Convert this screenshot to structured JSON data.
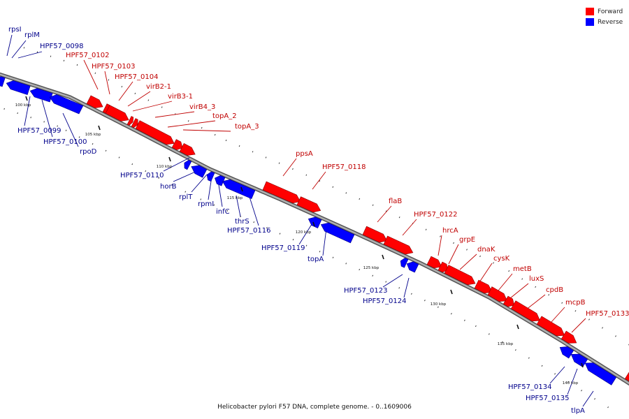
{
  "caption": "Helicobacter pylori F57 DNA, complete genome. - 0..1609006",
  "legend": {
    "forward": {
      "label": "Forward",
      "color": "#ff0000"
    },
    "reverse": {
      "label": "Reverse",
      "color": "#0000ff"
    }
  },
  "colors": {
    "backbone": "#8c8c8c",
    "forward_text": "#c00000",
    "reverse_text": "#00008b",
    "tick": "#111111"
  },
  "ticks": [
    "100 kbp",
    "105 kbp",
    "110 kbp",
    "115 kbp",
    "120 kbp",
    "125 kbp",
    "130 kbp",
    "135 kbp",
    "140 kbp"
  ],
  "forward_genes": [
    "HPF57_0102",
    "HPF57_0103",
    "HPF57_0104",
    "virB2-1",
    "virB3-1",
    "virB4_3",
    "topA_2",
    "topA_3",
    "ppsA",
    "HPF57_0118",
    "flaB",
    "HPF57_0122",
    "hrcA",
    "grpE",
    "dnaK",
    "cysK",
    "metB",
    "luxS",
    "cpdB",
    "mcpB",
    "HPF57_0133"
  ],
  "reverse_genes": [
    "rpsI",
    "rplM",
    "HPF57_0098",
    "HPF57_0099",
    "HPF57_0100",
    "rpoD",
    "HPF57_0110",
    "horB",
    "rplT",
    "rpmI",
    "infC",
    "thrS",
    "HPF57_0116",
    "HPF57_0119",
    "topA",
    "HPF57_0123",
    "HPF57_0124",
    "HPF57_0134",
    "HPF57_0135",
    "tlpA"
  ]
}
